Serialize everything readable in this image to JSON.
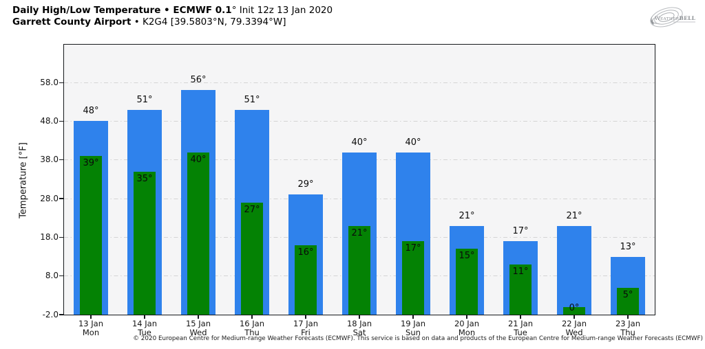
{
  "header": {
    "title_bold": "Daily High/Low Temperature • ECMWF 0.1",
    "title_regular": "° Init 12z 13 Jan 2020",
    "subtitle_bold": "Garrett County Airport",
    "subtitle_regular": " • K2G4 [39.5803°N, 79.3394°W]"
  },
  "logo": {
    "text": "WeatherBELL"
  },
  "chart_data": {
    "type": "bar",
    "title": "Daily High/Low Temperature • ECMWF 0.1° Init 12z 13 Jan 2020",
    "subtitle": "Garrett County Airport • K2G4 [39.5803°N, 79.3394°W]",
    "ylabel": "Temperature [°F]",
    "xlabel": "",
    "categories_date": [
      "13 Jan",
      "14 Jan",
      "15 Jan",
      "16 Jan",
      "17 Jan",
      "18 Jan",
      "19 Jan",
      "20 Jan",
      "21 Jan",
      "22 Jan",
      "23 Jan"
    ],
    "categories_day": [
      "Mon",
      "Tue",
      "Wed",
      "Thu",
      "Fri",
      "Sat",
      "Sun",
      "Mon",
      "Tue",
      "Wed",
      "Thu"
    ],
    "series": [
      {
        "name": "High",
        "color": "#2f82ec",
        "values": [
          48,
          51,
          56,
          51,
          29,
          40,
          40,
          21,
          17,
          21,
          13
        ]
      },
      {
        "name": "Low",
        "color": "#048204",
        "values": [
          39,
          35,
          40,
          27,
          16,
          21,
          17,
          15,
          11,
          0,
          5
        ]
      }
    ],
    "value_suffix": "°",
    "yticks": [
      58.0,
      48.0,
      38.0,
      28.0,
      18.0,
      8.0,
      -2.0
    ],
    "ylim": [
      -2,
      67.8
    ],
    "grid": "horizontal dash-dot",
    "plot_background": "#f5f5f6",
    "grid_color": "#d4d4d4",
    "spine_color": "#14171a"
  },
  "footer": {
    "copyright": "© 2020 European Centre for Medium-range Weather Forecasts (ECMWF). This service is based on data and products of the European Centre for Medium-range Weather Forecasts (ECMWF)"
  }
}
